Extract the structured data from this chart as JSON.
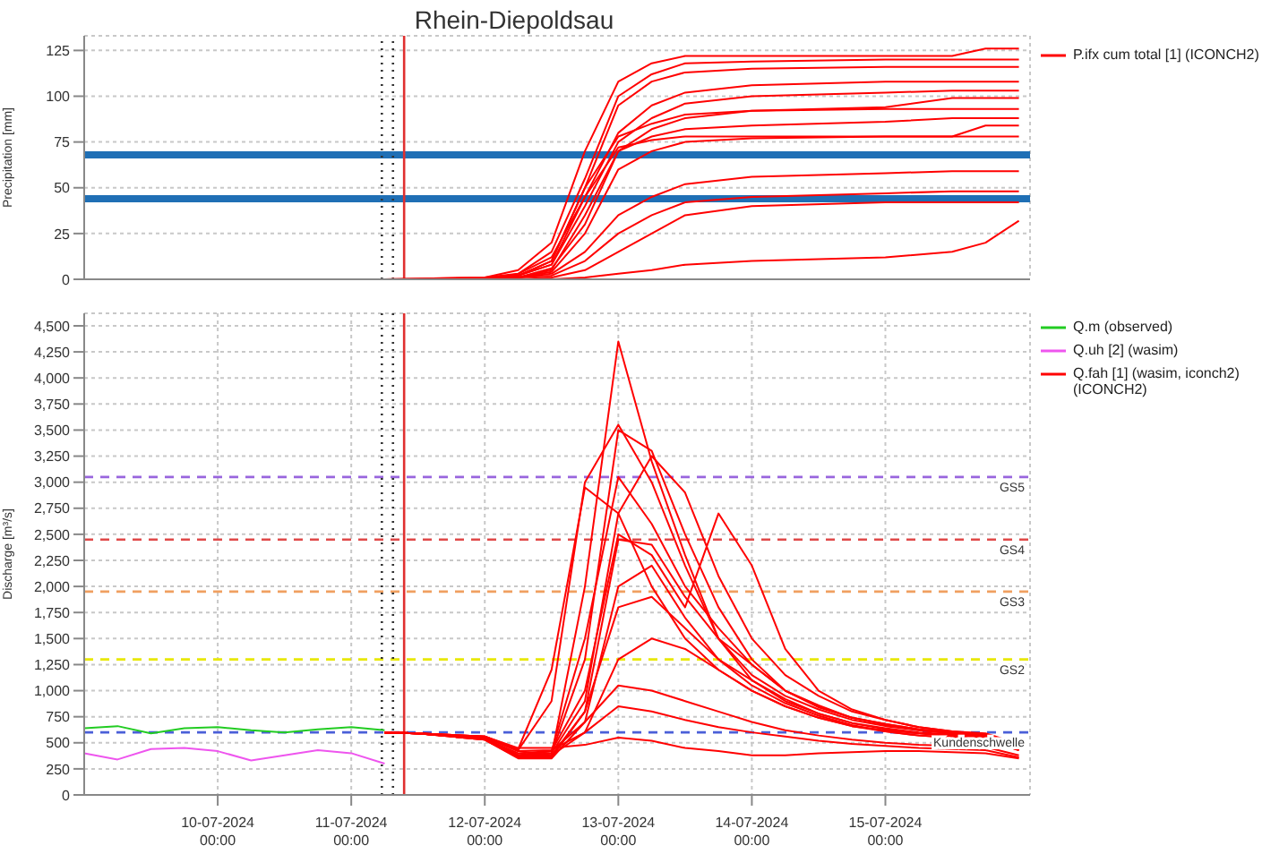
{
  "chart_data": [
    {
      "type": "line",
      "title": "Rhein-Diepoldsau",
      "ylabel": "Precipitation [mm]",
      "legend": "top right",
      "grid": true,
      "tick_labels": "y",
      "xlim": [
        "2024-07-09T00:00",
        "2024-07-16T02:00"
      ],
      "xticks": [
        "2024-07-10T00:00",
        "2024-07-11T00:00",
        "2024-07-12T00:00",
        "2024-07-13T00:00",
        "2024-07-14T00:00",
        "2024-07-15T00:00"
      ],
      "ylim": [
        0,
        133
      ],
      "yticks": [
        0,
        25,
        50,
        75,
        100,
        125
      ],
      "x": [
        "2024-07-11T06:00",
        "2024-07-12T00:00",
        "2024-07-12T06:00",
        "2024-07-12T12:00",
        "2024-07-12T18:00",
        "2024-07-13T00:00",
        "2024-07-13T06:00",
        "2024-07-13T12:00",
        "2024-07-14T00:00",
        "2024-07-15T00:00",
        "2024-07-15T12:00",
        "2024-07-15T18:00",
        "2024-07-16T00:00"
      ],
      "ref_lines": [
        {
          "axis": "y",
          "value": 68,
          "color": "#1f6fb5",
          "line_style": "solid"
        },
        {
          "axis": "y",
          "value": 44,
          "color": "#1f6fb5",
          "line_style": "solid"
        },
        {
          "axis": "x",
          "value": "2024-07-11T05:30",
          "color": "#333333",
          "line_style": "dotted"
        },
        {
          "axis": "x",
          "value": "2024-07-11T07:30",
          "color": "#333333",
          "line_style": "dotted"
        },
        {
          "axis": "x",
          "value": "2024-07-11T09:30",
          "color": "#e03030",
          "line_style": "solid"
        }
      ],
      "series": [
        {
          "name": "P.ifx cum total [1]  (ICONCH2)",
          "color": "#ff0000",
          "values": [
            0,
            1,
            5,
            20,
            70,
            108,
            118,
            122,
            122,
            122,
            122,
            126,
            126
          ]
        },
        {
          "color": "#ff0000",
          "values": [
            0,
            1,
            3,
            15,
            55,
            100,
            112,
            118,
            119,
            120,
            120,
            120,
            120
          ]
        },
        {
          "color": "#ff0000",
          "values": [
            0,
            0,
            2,
            10,
            50,
            95,
            108,
            113,
            115,
            116,
            116,
            116,
            116
          ]
        },
        {
          "color": "#ff0000",
          "values": [
            0,
            0,
            3,
            12,
            45,
            80,
            95,
            102,
            106,
            108,
            108,
            108,
            108
          ]
        },
        {
          "color": "#ff0000",
          "values": [
            0,
            0,
            2,
            8,
            40,
            75,
            88,
            96,
            100,
            102,
            103,
            103,
            103
          ]
        },
        {
          "color": "#ff0000",
          "values": [
            0,
            0,
            1,
            6,
            30,
            70,
            82,
            88,
            92,
            94,
            99,
            99,
            99
          ]
        },
        {
          "color": "#ff0000",
          "values": [
            0,
            0,
            2,
            10,
            50,
            78,
            85,
            90,
            92,
            93,
            93,
            93,
            93
          ]
        },
        {
          "color": "#ff0000",
          "values": [
            0,
            0,
            1,
            5,
            35,
            70,
            78,
            82,
            84,
            86,
            88,
            88,
            88
          ]
        },
        {
          "color": "#ff0000",
          "values": [
            0,
            0,
            2,
            8,
            45,
            72,
            76,
            78,
            78,
            78,
            78,
            84,
            84
          ]
        },
        {
          "color": "#ff0000",
          "values": [
            0,
            0,
            1,
            4,
            25,
            60,
            70,
            75,
            77,
            78,
            78,
            78,
            78
          ]
        },
        {
          "color": "#ff0000",
          "values": [
            0,
            0,
            1,
            3,
            15,
            35,
            45,
            52,
            56,
            58,
            59,
            59,
            59
          ]
        },
        {
          "color": "#ff0000",
          "values": [
            0,
            0,
            1,
            2,
            10,
            25,
            35,
            42,
            45,
            47,
            48,
            48,
            48
          ]
        },
        {
          "color": "#ff0000",
          "values": [
            0,
            0,
            0,
            1,
            5,
            15,
            25,
            35,
            40,
            42,
            42,
            42,
            42
          ]
        },
        {
          "color": "#ff0000",
          "values": [
            0,
            0,
            0,
            0,
            1,
            3,
            5,
            8,
            10,
            12,
            15,
            20,
            32
          ]
        }
      ]
    },
    {
      "type": "line",
      "ylabel": "Discharge [m³/s]",
      "legend": "top right",
      "grid": true,
      "xlim": [
        "2024-07-09T00:00",
        "2024-07-16T02:00"
      ],
      "xticks": [
        {
          "value": "2024-07-10T00:00",
          "label": "10-07-2024 00:00"
        },
        {
          "value": "2024-07-11T00:00",
          "label": "11-07-2024 00:00"
        },
        {
          "value": "2024-07-12T00:00",
          "label": "12-07-2024 00:00"
        },
        {
          "value": "2024-07-13T00:00",
          "label": "13-07-2024 00:00"
        },
        {
          "value": "2024-07-14T00:00",
          "label": "14-07-2024 00:00"
        },
        {
          "value": "2024-07-15T00:00",
          "label": "15-07-2024 00:00"
        }
      ],
      "ylim": [
        0,
        4620
      ],
      "yticks": [
        0,
        250,
        500,
        750,
        {
          "value": 1000,
          "label": "1,000"
        },
        {
          "value": 1250,
          "label": "1,250"
        },
        {
          "value": 1500,
          "label": "1,500"
        },
        {
          "value": 1750,
          "label": "1,750"
        },
        {
          "value": 2000,
          "label": "2,000"
        },
        {
          "value": 2250,
          "label": "2,250"
        },
        {
          "value": 2500,
          "label": "2,500"
        },
        {
          "value": 2750,
          "label": "2,750"
        },
        {
          "value": 3000,
          "label": "3,000"
        },
        {
          "value": 3250,
          "label": "3,250"
        },
        {
          "value": 3500,
          "label": "3,500"
        },
        {
          "value": 3750,
          "label": "3,750"
        },
        {
          "value": 4000,
          "label": "4,000"
        },
        {
          "value": 4250,
          "label": "4,250"
        },
        {
          "value": 4500,
          "label": "4,500"
        }
      ],
      "x": [
        "2024-07-11T06:00",
        "2024-07-11T12:00",
        "2024-07-12T00:00",
        "2024-07-12T06:00",
        "2024-07-12T12:00",
        "2024-07-12T18:00",
        "2024-07-13T00:00",
        "2024-07-13T06:00",
        "2024-07-13T12:00",
        "2024-07-13T18:00",
        "2024-07-14T00:00",
        "2024-07-14T06:00",
        "2024-07-14T12:00",
        "2024-07-14T18:00",
        "2024-07-15T00:00",
        "2024-07-15T06:00",
        "2024-07-15T12:00",
        "2024-07-15T18:00",
        "2024-07-16T00:00"
      ],
      "ref_lines": [
        {
          "axis": "y",
          "value": 3050,
          "label": "GS5",
          "color": "#9966dd",
          "line_style": "dashed"
        },
        {
          "axis": "y",
          "value": 2450,
          "label": "GS4",
          "color": "#e04848",
          "line_style": "dashed"
        },
        {
          "axis": "y",
          "value": 1950,
          "label": "GS3",
          "color": "#f0a060",
          "line_style": "dashed"
        },
        {
          "axis": "y",
          "value": 1300,
          "label": "GS2",
          "color": "#e8e800",
          "line_style": "dashed"
        },
        {
          "axis": "y",
          "value": 600,
          "label": "Kundenschwelle",
          "color": "#4a5fd8",
          "line_style": "dashed"
        },
        {
          "axis": "x",
          "value": "2024-07-11T05:30",
          "color": "#333333",
          "line_style": "dotted"
        },
        {
          "axis": "x",
          "value": "2024-07-11T07:30",
          "color": "#333333",
          "line_style": "dotted"
        },
        {
          "axis": "x",
          "value": "2024-07-11T09:30",
          "color": "#e03030",
          "line_style": "solid"
        }
      ],
      "series": [
        {
          "name": "Q.m (observed)",
          "color": "#22cc22",
          "x": [
            "2024-07-09T00:00",
            "2024-07-09T06:00",
            "2024-07-09T12:00",
            "2024-07-09T18:00",
            "2024-07-10T00:00",
            "2024-07-10T06:00",
            "2024-07-10T12:00",
            "2024-07-10T18:00",
            "2024-07-11T00:00",
            "2024-07-11T06:00"
          ],
          "values": [
            640,
            660,
            590,
            640,
            650,
            620,
            600,
            630,
            650,
            620
          ]
        },
        {
          "name": "Q.uh [2] (wasim)",
          "color": "#ee55ee",
          "x": [
            "2024-07-09T00:00",
            "2024-07-09T06:00",
            "2024-07-09T12:00",
            "2024-07-09T18:00",
            "2024-07-10T00:00",
            "2024-07-10T06:00",
            "2024-07-10T12:00",
            "2024-07-10T18:00",
            "2024-07-11T00:00",
            "2024-07-11T06:00"
          ],
          "values": [
            400,
            340,
            440,
            450,
            420,
            330,
            380,
            430,
            400,
            300
          ]
        },
        {
          "name": "Q.fah [1] (wasim, iconch2)  (ICONCH2)",
          "color": "#ff0000",
          "values": [
            600,
            590,
            560,
            420,
            380,
            2000,
            4350,
            3200,
            2300,
            1500,
            1150,
            950,
            820,
            720,
            660,
            620,
            590,
            570,
            470
          ]
        },
        {
          "color": "#ff0000",
          "values": [
            600,
            590,
            560,
            430,
            900,
            3000,
            3550,
            3000,
            2200,
            1500,
            1100,
            900,
            780,
            690,
            640,
            600,
            580,
            550,
            450
          ]
        },
        {
          "color": "#ff0000",
          "values": [
            600,
            590,
            560,
            440,
            1200,
            2950,
            2700,
            2000,
            1500,
            1200,
            1000,
            850,
            740,
            660,
            620,
            590,
            570,
            550,
            460
          ]
        },
        {
          "color": "#ff0000",
          "values": [
            600,
            590,
            540,
            380,
            400,
            1300,
            3500,
            3300,
            2500,
            1800,
            1300,
            1000,
            840,
            740,
            680,
            630,
            600,
            580,
            480
          ]
        },
        {
          "color": "#ff0000",
          "values": [
            600,
            590,
            540,
            370,
            400,
            900,
            2700,
            3250,
            2900,
            2100,
            1500,
            1150,
            950,
            800,
            720,
            650,
            610,
            580,
            480
          ]
        },
        {
          "color": "#ff0000",
          "values": [
            600,
            590,
            540,
            380,
            420,
            1000,
            2500,
            2300,
            1800,
            2700,
            2200,
            1400,
            1000,
            820,
            720,
            650,
            610,
            590,
            490
          ]
        },
        {
          "color": "#ff0000",
          "values": [
            600,
            590,
            530,
            360,
            360,
            800,
            2450,
            2400,
            1900,
            1500,
            1250,
            1000,
            860,
            740,
            670,
            620,
            590,
            560,
            460
          ]
        },
        {
          "color": "#ff0000",
          "values": [
            600,
            590,
            530,
            350,
            350,
            700,
            2000,
            2200,
            1700,
            1300,
            1100,
            920,
            780,
            690,
            630,
            590,
            560,
            540,
            440
          ]
        },
        {
          "color": "#ff0000",
          "values": [
            600,
            590,
            530,
            360,
            380,
            800,
            1800,
            1900,
            1600,
            1300,
            1050,
            880,
            760,
            670,
            610,
            570,
            550,
            530,
            430
          ]
        },
        {
          "color": "#ff0000",
          "values": [
            600,
            590,
            540,
            380,
            380,
            600,
            1300,
            1500,
            1400,
            1200,
            1000,
            850,
            740,
            660,
            610,
            570,
            550,
            530,
            430
          ]
        },
        {
          "color": "#ff0000",
          "values": [
            600,
            590,
            540,
            400,
            420,
            700,
            1050,
            1000,
            900,
            800,
            700,
            620,
            570,
            530,
            500,
            480,
            470,
            460,
            380
          ]
        },
        {
          "color": "#ff0000",
          "values": [
            600,
            590,
            550,
            420,
            430,
            600,
            850,
            800,
            720,
            650,
            600,
            560,
            520,
            490,
            470,
            450,
            440,
            430,
            360
          ]
        },
        {
          "color": "#ff0000",
          "values": [
            600,
            590,
            560,
            450,
            450,
            480,
            550,
            520,
            450,
            420,
            380,
            380,
            400,
            410,
            420,
            420,
            410,
            400,
            350
          ]
        },
        {
          "color": "#ff0000",
          "values": [
            600,
            590,
            540,
            380,
            420,
            1500,
            3050,
            2600,
            2000,
            1600,
            1250,
            1000,
            850,
            740,
            680,
            630,
            600,
            580,
            480
          ]
        }
      ]
    }
  ]
}
